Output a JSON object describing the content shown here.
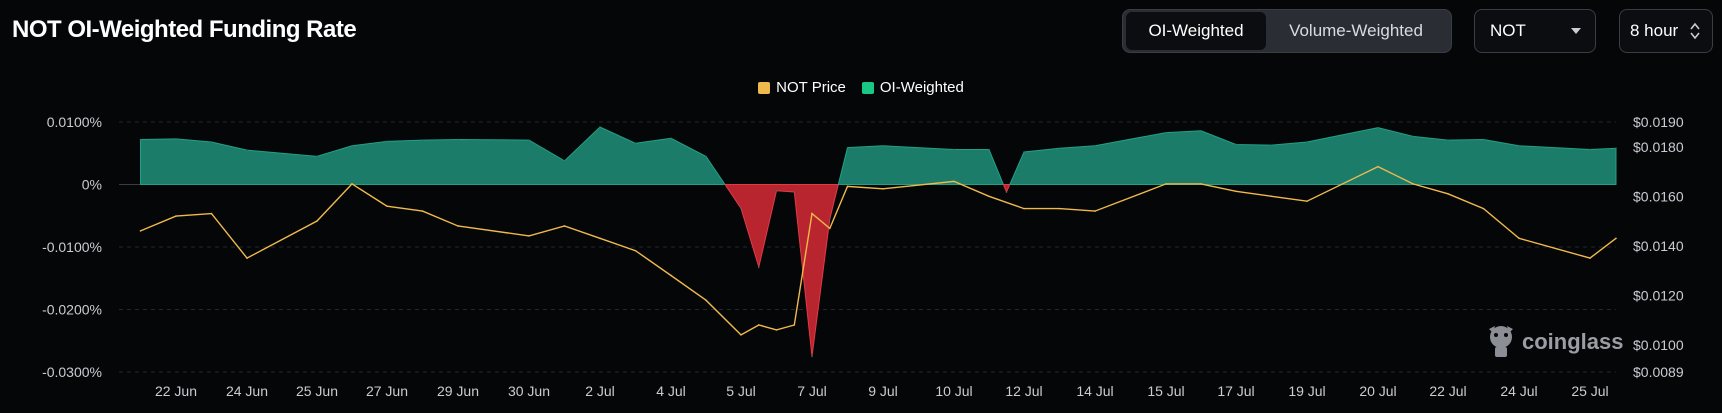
{
  "title": "NOT OI-Weighted Funding Rate",
  "toggle": {
    "options": [
      "OI-Weighted",
      "Volume-Weighted"
    ],
    "active": "OI-Weighted"
  },
  "coin_select": {
    "value": "NOT",
    "icon": "chevron-down-icon"
  },
  "interval_select": {
    "value": "8 hour",
    "icon": "up-down-chevron-icon"
  },
  "colors": {
    "price": "#f0b94c",
    "positive": "#1b7c6a",
    "negative": "#b8252f",
    "background": "#050608"
  },
  "legend": [
    {
      "label": "NOT Price",
      "color": "#f0b94c"
    },
    {
      "label": "OI-Weighted",
      "color": "#18c985"
    }
  ],
  "watermark": "coinglass",
  "chart_data": {
    "type": "area",
    "x_ticks": [
      "22 Jun",
      "24 Jun",
      "25 Jun",
      "27 Jun",
      "29 Jun",
      "30 Jun",
      "2 Jul",
      "4 Jul",
      "5 Jul",
      "7 Jul",
      "9 Jul",
      "10 Jul",
      "12 Jul",
      "14 Jul",
      "15 Jul",
      "17 Jul",
      "19 Jul",
      "20 Jul",
      "22 Jul",
      "24 Jul",
      "25 Jul"
    ],
    "y_left": {
      "ticks": [
        "0.0100%",
        "0%",
        "-0.0100%",
        "-0.0200%",
        "-0.0300%"
      ],
      "range": [
        -0.03,
        0.01
      ],
      "unit": "%"
    },
    "y_right": {
      "ticks": [
        "$0.0190",
        "$0.0180",
        "$0.0160",
        "$0.0140",
        "$0.0120",
        "$0.0100",
        "$0.0089"
      ],
      "range": [
        0.0089,
        0.019
      ]
    },
    "grid": true,
    "legend_position": "top-center",
    "series": [
      {
        "name": "OI-Weighted",
        "x": [
          "21 Jun",
          "22 Jun",
          "23 Jun",
          "24 Jun",
          "25 Jun",
          "26 Jun",
          "27 Jun",
          "28 Jun",
          "29 Jun",
          "30 Jun",
          "1 Jul",
          "2 Jul",
          "3 Jul",
          "4 Jul",
          "4.5 Jul",
          "5 Jul",
          "5.5 Jul",
          "6 Jul",
          "6.5 Jul",
          "7 Jul",
          "7.5 Jul",
          "8 Jul",
          "9 Jul",
          "10 Jul",
          "11 Jul",
          "11.5 Jul",
          "12 Jul",
          "13 Jul",
          "14 Jul",
          "15 Jul",
          "16 Jul",
          "17 Jul",
          "18 Jul",
          "19 Jul",
          "20 Jul",
          "21 Jul",
          "22 Jul",
          "23 Jul",
          "24 Jul",
          "25 Jul",
          "26 Jul"
        ],
        "values": [
          0.0072,
          0.0073,
          0.0068,
          0.0055,
          0.0045,
          0.0062,
          0.0069,
          0.0071,
          0.0072,
          0.0071,
          0.0038,
          0.0092,
          0.0066,
          0.0074,
          0.0045,
          -0.0038,
          -0.0132,
          -0.001,
          -0.0012,
          -0.0275,
          -0.0055,
          0.0059,
          0.0062,
          0.0056,
          0.0056,
          -0.0012,
          0.0052,
          0.0058,
          0.0062,
          0.0083,
          0.0086,
          0.0064,
          0.0063,
          0.0068,
          0.0091,
          0.0077,
          0.0071,
          0.0072,
          0.0062,
          0.0056,
          0.0058
        ]
      },
      {
        "name": "NOT Price",
        "x": [
          "21 Jun",
          "22 Jun",
          "23 Jun",
          "24 Jun",
          "25 Jun",
          "26 Jun",
          "27 Jun",
          "28 Jun",
          "29 Jun",
          "30 Jun",
          "1 Jul",
          "2 Jul",
          "3 Jul",
          "4 Jul",
          "4.5 Jul",
          "5 Jul",
          "5.5 Jul",
          "6 Jul",
          "6.5 Jul",
          "7 Jul",
          "7.5 Jul",
          "8 Jul",
          "9 Jul",
          "10 Jul",
          "11 Jul",
          "12 Jul",
          "13 Jul",
          "14 Jul",
          "15 Jul",
          "16 Jul",
          "17 Jul",
          "18 Jul",
          "19 Jul",
          "20 Jul",
          "21 Jul",
          "22 Jul",
          "23 Jul",
          "24 Jul",
          "25 Jul",
          "26 Jul"
        ],
        "values": [
          0.0146,
          0.0152,
          0.0153,
          0.0135,
          0.015,
          0.0165,
          0.0156,
          0.0154,
          0.0148,
          0.0144,
          0.0148,
          0.0143,
          0.0138,
          0.0128,
          0.0118,
          0.0104,
          0.0108,
          0.0106,
          0.0108,
          0.0153,
          0.0147,
          0.0164,
          0.0163,
          0.0166,
          0.016,
          0.0155,
          0.0155,
          0.0154,
          0.0165,
          0.0165,
          0.0162,
          0.016,
          0.0158,
          0.0172,
          0.0165,
          0.0161,
          0.0155,
          0.0143,
          0.0135,
          0.0143
        ]
      }
    ]
  }
}
